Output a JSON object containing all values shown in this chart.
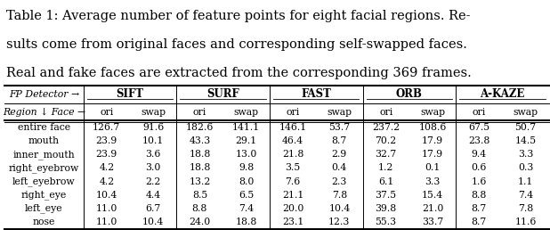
{
  "caption_lines": [
    "Table 1: Average number of feature points for eight facial regions. Re-",
    "sults come from original faces and corresponding self-swapped faces.",
    "Real and fake faces are extracted from the corresponding 369 frames."
  ],
  "col_groups": [
    "SIFT",
    "SURF",
    "FAST",
    "ORB",
    "A-KAZE"
  ],
  "sub_cols": [
    "ori",
    "swap"
  ],
  "header1": "FP Detector →",
  "header2": "Region ↓ Face →",
  "regions": [
    "entire face",
    "mouth",
    "inner_mouth",
    "right_eyebrow",
    "left_eyebrow",
    "right_eye",
    "left_eye",
    "nose"
  ],
  "data": {
    "SIFT": {
      "ori": [
        126.7,
        23.9,
        23.9,
        4.2,
        4.2,
        10.4,
        11.0,
        11.0
      ],
      "swap": [
        91.6,
        10.1,
        3.6,
        3.0,
        2.2,
        4.4,
        6.7,
        10.4
      ]
    },
    "SURF": {
      "ori": [
        182.6,
        43.3,
        18.8,
        18.8,
        13.2,
        8.5,
        8.8,
        24.0
      ],
      "swap": [
        141.1,
        29.1,
        13.0,
        9.8,
        8.0,
        6.5,
        7.4,
        18.8
      ]
    },
    "FAST": {
      "ori": [
        146.1,
        46.4,
        21.8,
        3.5,
        7.6,
        21.1,
        20.0,
        23.1
      ],
      "swap": [
        53.7,
        8.7,
        2.9,
        0.4,
        2.3,
        7.8,
        10.4,
        12.3
      ]
    },
    "ORB": {
      "ori": [
        237.2,
        70.2,
        32.7,
        1.2,
        6.1,
        37.5,
        39.8,
        55.3
      ],
      "swap": [
        108.6,
        17.9,
        17.9,
        0.1,
        3.3,
        15.4,
        21.0,
        33.7
      ]
    },
    "A-KAZE": {
      "ori": [
        67.5,
        23.8,
        9.4,
        0.6,
        1.6,
        8.8,
        8.7,
        8.7
      ],
      "swap": [
        50.7,
        14.5,
        3.3,
        0.3,
        1.1,
        7.4,
        7.8,
        11.6
      ]
    }
  },
  "figsize": [
    6.18,
    2.58
  ],
  "dpi": 100,
  "caption_fontsize": 10.5,
  "table_fontsize": 7.8,
  "header_fontsize": 7.8,
  "group_fontsize": 8.5
}
